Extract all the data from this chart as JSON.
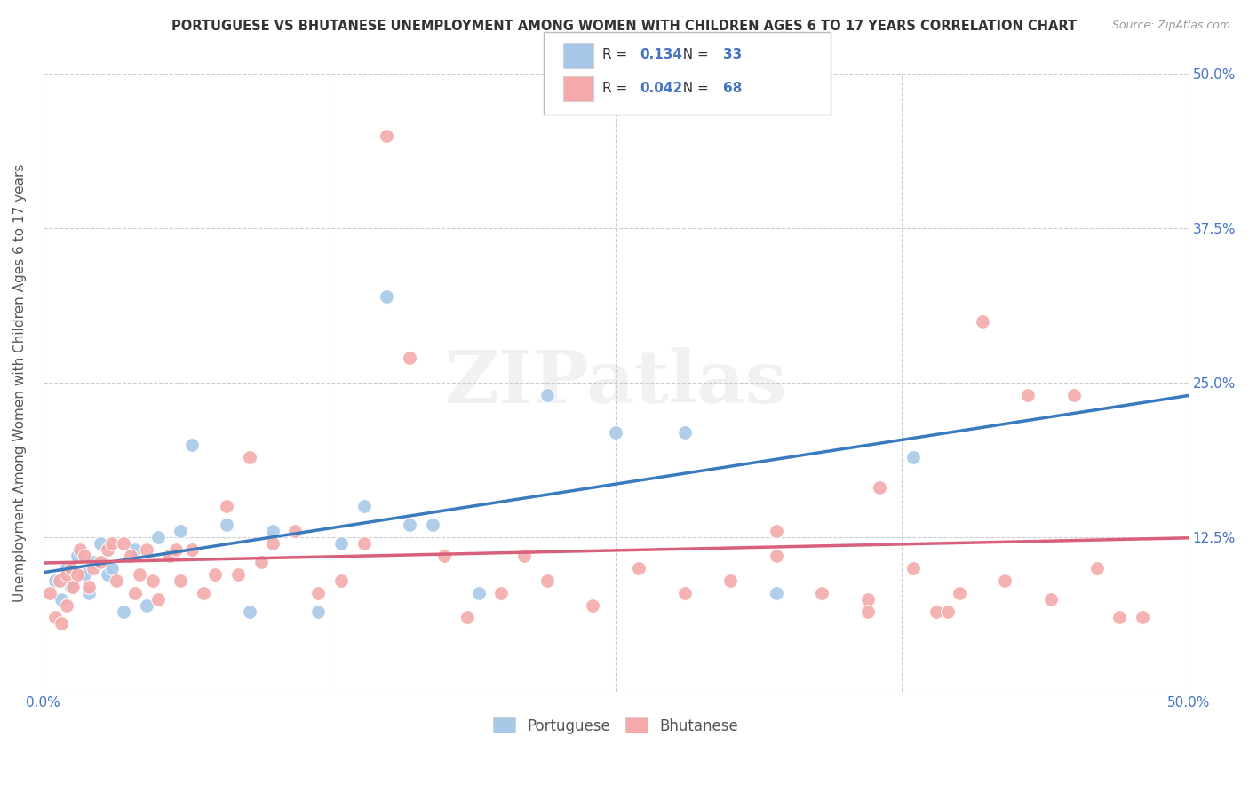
{
  "title": "PORTUGUESE VS BHUTANESE UNEMPLOYMENT AMONG WOMEN WITH CHILDREN AGES 6 TO 17 YEARS CORRELATION CHART",
  "source": "Source: ZipAtlas.com",
  "ylabel": "Unemployment Among Women with Children Ages 6 to 17 years",
  "xlim": [
    0.0,
    0.5
  ],
  "ylim": [
    0.0,
    0.5
  ],
  "xticks": [
    0.0,
    0.125,
    0.25,
    0.375,
    0.5
  ],
  "yticks": [
    0.0,
    0.125,
    0.25,
    0.375,
    0.5
  ],
  "xtick_labels": [
    "0.0%",
    "",
    "",
    "",
    "50.0%"
  ],
  "ytick_labels_right": [
    "",
    "12.5%",
    "25.0%",
    "37.5%",
    "50.0%"
  ],
  "grid_color": "#cccccc",
  "background_color": "#ffffff",
  "blue_scatter_color": "#a8c8e8",
  "pink_scatter_color": "#f4aaaa",
  "line_blue": "#3a7bbf",
  "line_pink": "#d9607a",
  "tick_color": "#4472c4",
  "R_blue": 0.134,
  "N_blue": 33,
  "R_pink": 0.042,
  "N_pink": 68,
  "legend_label_blue": "Portuguese",
  "legend_label_pink": "Bhutanese",
  "watermark": "ZIPatlas",
  "portuguese_x": [
    0.005,
    0.008,
    0.01,
    0.012,
    0.015,
    0.018,
    0.02,
    0.022,
    0.025,
    0.028,
    0.03,
    0.035,
    0.04,
    0.045,
    0.05,
    0.055,
    0.06,
    0.065,
    0.08,
    0.09,
    0.1,
    0.12,
    0.13,
    0.14,
    0.15,
    0.16,
    0.17,
    0.19,
    0.22,
    0.25,
    0.28,
    0.32,
    0.38
  ],
  "portuguese_y": [
    0.09,
    0.075,
    0.1,
    0.085,
    0.11,
    0.095,
    0.08,
    0.105,
    0.12,
    0.095,
    0.1,
    0.065,
    0.115,
    0.07,
    0.125,
    0.11,
    0.13,
    0.2,
    0.135,
    0.065,
    0.13,
    0.065,
    0.12,
    0.15,
    0.32,
    0.135,
    0.135,
    0.08,
    0.24,
    0.21,
    0.21,
    0.08,
    0.19
  ],
  "bhutanese_x": [
    0.003,
    0.005,
    0.007,
    0.008,
    0.01,
    0.01,
    0.012,
    0.013,
    0.015,
    0.016,
    0.018,
    0.02,
    0.022,
    0.025,
    0.028,
    0.03,
    0.032,
    0.035,
    0.038,
    0.04,
    0.042,
    0.045,
    0.048,
    0.05,
    0.055,
    0.058,
    0.06,
    0.065,
    0.07,
    0.075,
    0.08,
    0.085,
    0.09,
    0.095,
    0.1,
    0.11,
    0.12,
    0.13,
    0.14,
    0.15,
    0.16,
    0.175,
    0.185,
    0.2,
    0.21,
    0.22,
    0.24,
    0.26,
    0.28,
    0.3,
    0.32,
    0.34,
    0.36,
    0.365,
    0.38,
    0.39,
    0.395,
    0.4,
    0.42,
    0.44,
    0.46,
    0.47,
    0.48,
    0.32,
    0.36,
    0.41,
    0.43,
    0.45
  ],
  "bhutanese_y": [
    0.08,
    0.06,
    0.09,
    0.055,
    0.095,
    0.07,
    0.1,
    0.085,
    0.095,
    0.115,
    0.11,
    0.085,
    0.1,
    0.105,
    0.115,
    0.12,
    0.09,
    0.12,
    0.11,
    0.08,
    0.095,
    0.115,
    0.09,
    0.075,
    0.11,
    0.115,
    0.09,
    0.115,
    0.08,
    0.095,
    0.15,
    0.095,
    0.19,
    0.105,
    0.12,
    0.13,
    0.08,
    0.09,
    0.12,
    0.45,
    0.27,
    0.11,
    0.06,
    0.08,
    0.11,
    0.09,
    0.07,
    0.1,
    0.08,
    0.09,
    0.11,
    0.08,
    0.075,
    0.165,
    0.1,
    0.065,
    0.065,
    0.08,
    0.09,
    0.075,
    0.1,
    0.06,
    0.06,
    0.13,
    0.065,
    0.3,
    0.24,
    0.24
  ]
}
